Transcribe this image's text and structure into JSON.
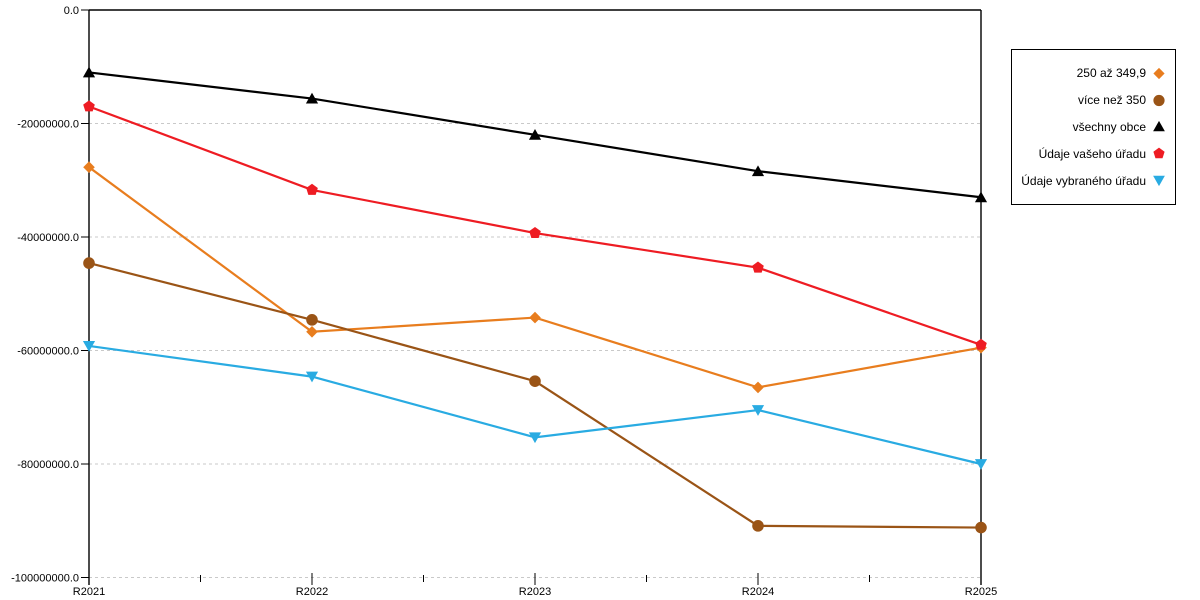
{
  "chart_data": {
    "type": "line",
    "title": "",
    "xlabel": "",
    "ylabel": "",
    "x": [
      "R2021",
      "R2022",
      "R2023",
      "R2024",
      "R2025"
    ],
    "y_ticks": [
      "0.0",
      "-20000000.0",
      "-40000000.0",
      "-60000000.0",
      "-80000000.0",
      "-100000000.0"
    ],
    "ylim": [
      -100000000,
      0
    ],
    "grid": "horizontal-dashed",
    "gridline_color": "#c9c9c9",
    "axis_color": "#000000",
    "legend_position": "right",
    "series": [
      {
        "name": "250 až 349,9",
        "marker": "diamond",
        "color": "#E87D1E",
        "values": [
          -27700000,
          -56700000,
          -54200000,
          -66500000,
          -59500000
        ]
      },
      {
        "name": "více než 350",
        "marker": "circle",
        "color": "#9A5416",
        "values": [
          -44600000,
          -54600000,
          -65400000,
          -90900000,
          -91200000
        ]
      },
      {
        "name": "všechny obce",
        "marker": "triangle-up",
        "color": "#000000",
        "values": [
          -11000000,
          -15600000,
          -22000000,
          -28400000,
          -33000000
        ]
      },
      {
        "name": "Údaje vašeho úřadu",
        "marker": "pentagon",
        "color": "#EE1C23",
        "values": [
          -17000000,
          -31700000,
          -39300000,
          -45400000,
          -59000000
        ]
      },
      {
        "name": "Údaje vybraného úřadu",
        "marker": "triangle-down",
        "color": "#29ABE2",
        "values": [
          -59200000,
          -64600000,
          -75300000,
          -70500000,
          -80000000
        ]
      }
    ]
  }
}
